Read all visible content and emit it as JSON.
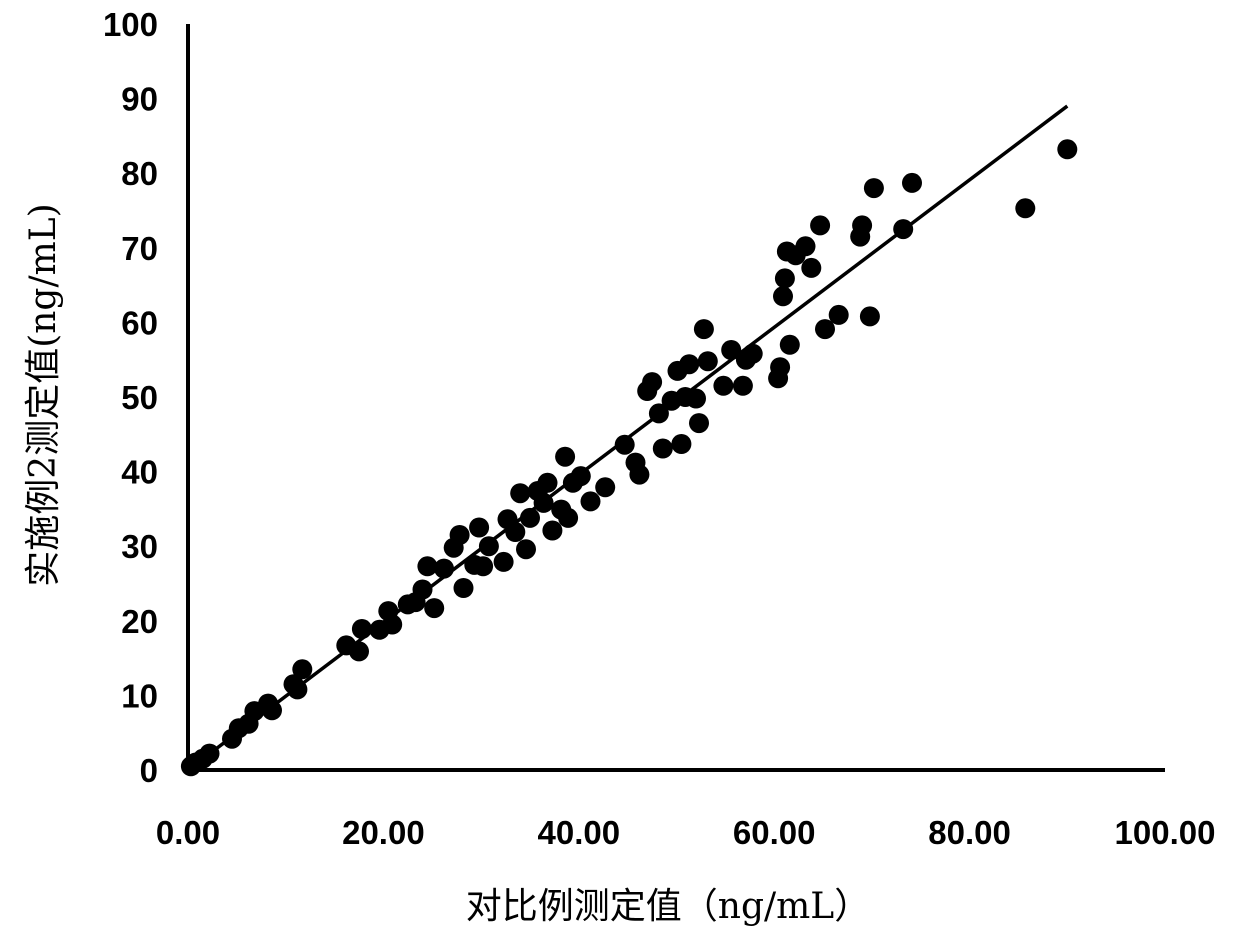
{
  "chart_data": {
    "type": "scatter",
    "title": "",
    "xlabel": "对比例测定值（ng/mL）",
    "ylabel": "实施例2测定值(ng/mL)",
    "xlim": [
      0,
      100
    ],
    "ylim": [
      0,
      100
    ],
    "x_ticks": [
      "0.00",
      "20.00",
      "40.00",
      "60.00",
      "80.00",
      "100.00"
    ],
    "y_ticks": [
      "0",
      "10",
      "20",
      "30",
      "40",
      "50",
      "60",
      "70",
      "80",
      "90",
      "100"
    ],
    "grid": false,
    "legend": "none",
    "point_color": "#000000",
    "trendline": {
      "type": "linear",
      "from": [
        0,
        0
      ],
      "to": [
        90,
        89
      ]
    },
    "series": [
      {
        "points": [
          [
            0.3,
            0.5
          ],
          [
            0.8,
            1.0
          ],
          [
            1.5,
            1.5
          ],
          [
            2.2,
            2.2
          ],
          [
            4.5,
            4.2
          ],
          [
            5.2,
            5.6
          ],
          [
            6.2,
            6.2
          ],
          [
            6.8,
            7.9
          ],
          [
            8.2,
            8.9
          ],
          [
            8.6,
            8.0
          ],
          [
            10.8,
            11.5
          ],
          [
            11.2,
            10.8
          ],
          [
            11.7,
            13.5
          ],
          [
            16.2,
            16.7
          ],
          [
            17.5,
            15.9
          ],
          [
            17.8,
            18.9
          ],
          [
            19.6,
            18.8
          ],
          [
            20.5,
            21.3
          ],
          [
            20.9,
            19.5
          ],
          [
            22.5,
            22.2
          ],
          [
            23.3,
            22.5
          ],
          [
            24.0,
            24.2
          ],
          [
            24.5,
            27.3
          ],
          [
            25.2,
            21.7
          ],
          [
            26.2,
            27.0
          ],
          [
            27.2,
            29.8
          ],
          [
            27.8,
            31.5
          ],
          [
            28.2,
            24.4
          ],
          [
            29.3,
            27.5
          ],
          [
            29.8,
            32.5
          ],
          [
            30.2,
            27.3
          ],
          [
            30.8,
            30.0
          ],
          [
            32.3,
            27.9
          ],
          [
            32.7,
            33.6
          ],
          [
            33.5,
            31.9
          ],
          [
            34.0,
            37.1
          ],
          [
            34.6,
            29.6
          ],
          [
            35.0,
            33.8
          ],
          [
            35.8,
            37.4
          ],
          [
            36.4,
            35.8
          ],
          [
            36.8,
            38.5
          ],
          [
            37.3,
            32.1
          ],
          [
            38.2,
            34.9
          ],
          [
            38.6,
            42.0
          ],
          [
            38.9,
            33.8
          ],
          [
            39.4,
            38.5
          ],
          [
            40.2,
            39.4
          ],
          [
            41.2,
            36.0
          ],
          [
            42.7,
            37.9
          ],
          [
            44.7,
            43.6
          ],
          [
            45.8,
            41.2
          ],
          [
            46.2,
            39.6
          ],
          [
            47.0,
            50.8
          ],
          [
            47.5,
            52.0
          ],
          [
            48.2,
            47.8
          ],
          [
            48.6,
            43.1
          ],
          [
            49.5,
            49.5
          ],
          [
            50.1,
            53.5
          ],
          [
            50.5,
            43.7
          ],
          [
            50.9,
            50.0
          ],
          [
            51.3,
            54.4
          ],
          [
            52.0,
            49.8
          ],
          [
            52.3,
            46.5
          ],
          [
            52.8,
            59.1
          ],
          [
            53.2,
            54.8
          ],
          [
            54.8,
            51.5
          ],
          [
            55.6,
            56.3
          ],
          [
            56.8,
            51.5
          ],
          [
            57.1,
            55.0
          ],
          [
            57.8,
            55.8
          ],
          [
            60.4,
            52.5
          ],
          [
            60.6,
            54.0
          ],
          [
            60.9,
            63.5
          ],
          [
            61.1,
            65.9
          ],
          [
            61.3,
            69.5
          ],
          [
            61.6,
            57.0
          ],
          [
            62.2,
            69.0
          ],
          [
            63.2,
            70.2
          ],
          [
            63.8,
            67.3
          ],
          [
            64.7,
            73.0
          ],
          [
            65.2,
            59.1
          ],
          [
            66.6,
            61.0
          ],
          [
            68.8,
            71.5
          ],
          [
            69.0,
            73.0
          ],
          [
            69.8,
            60.8
          ],
          [
            70.2,
            78.0
          ],
          [
            73.2,
            72.5
          ],
          [
            74.1,
            78.7
          ],
          [
            85.7,
            75.3
          ],
          [
            90.0,
            83.2
          ]
        ]
      }
    ]
  }
}
